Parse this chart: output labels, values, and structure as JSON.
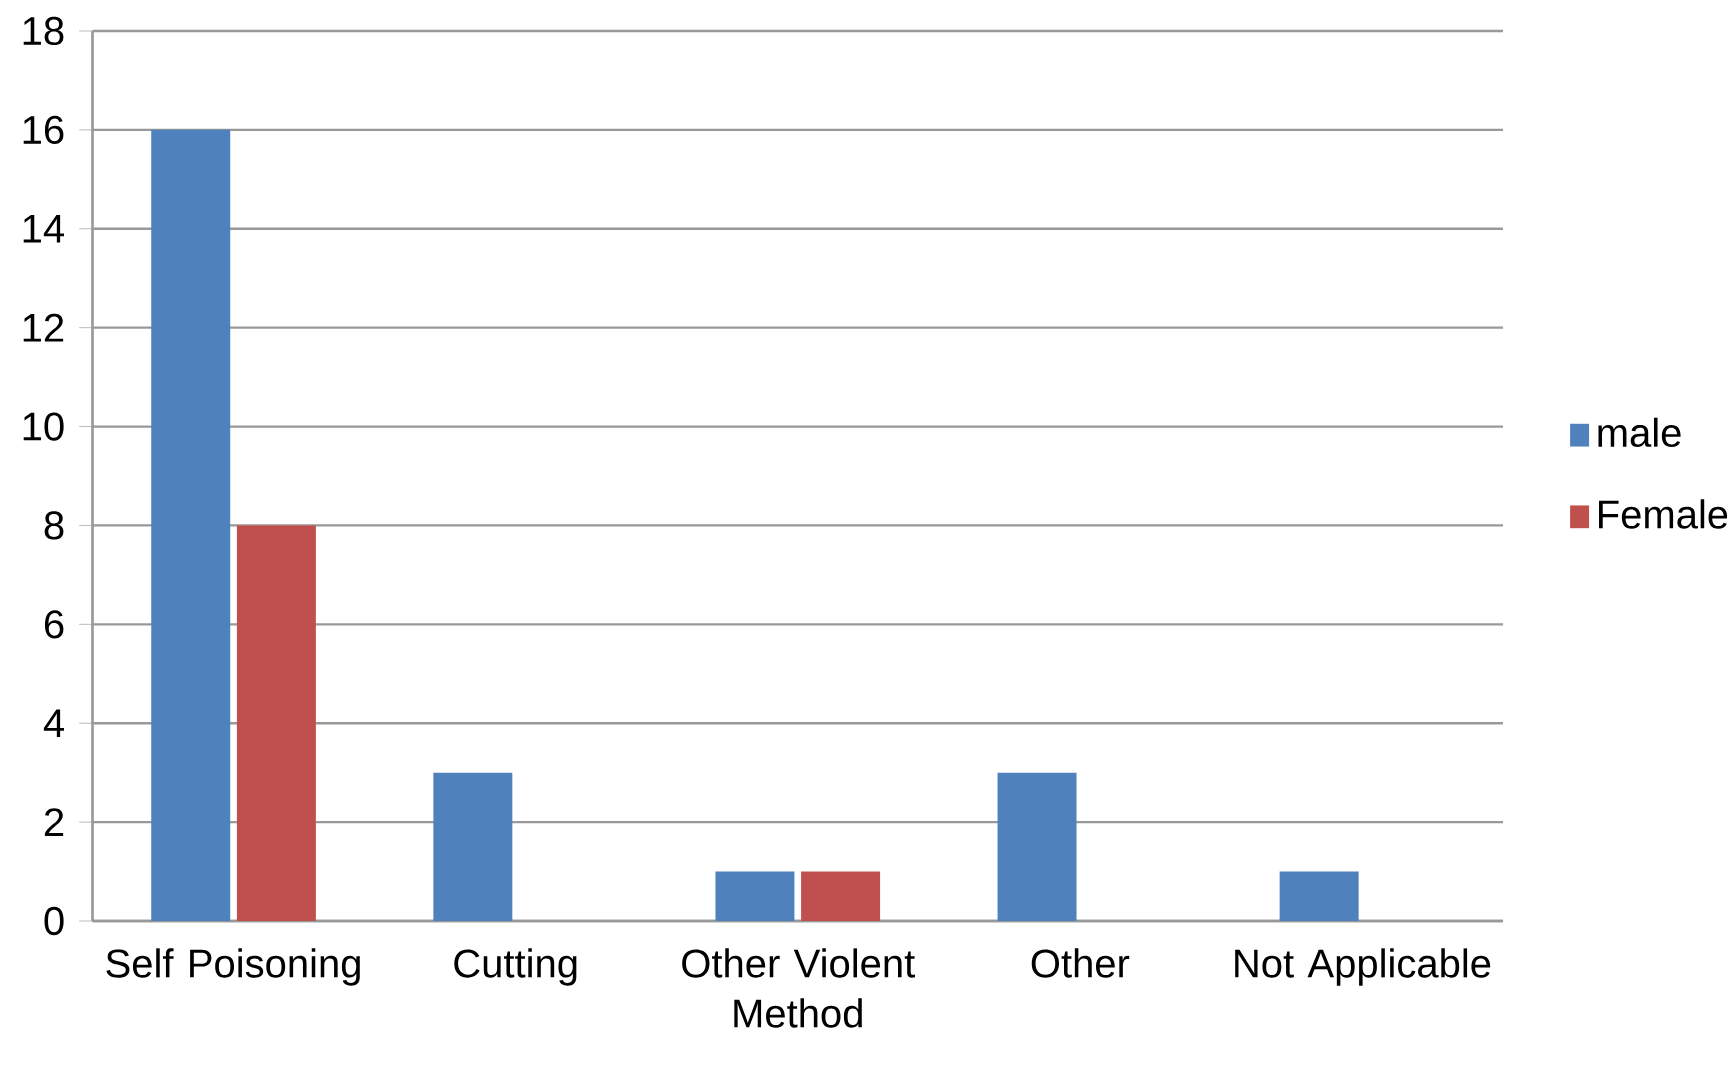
{
  "chart_data": {
    "type": "bar",
    "categories": [
      "Self Poisoning",
      "Cutting",
      "Other Violent Method",
      "Other",
      "Not Applicable"
    ],
    "series": [
      {
        "name": "male",
        "color": "#4f81bd",
        "values": [
          16,
          3,
          1,
          3,
          1
        ]
      },
      {
        "name": "Female",
        "color": "#c0504d",
        "values": [
          8,
          0,
          1,
          0,
          0
        ]
      }
    ],
    "ylim": [
      0,
      18
    ],
    "yticks": [
      0,
      2,
      4,
      6,
      8,
      10,
      12,
      14,
      16,
      18
    ],
    "grid": "y",
    "legend": "right"
  }
}
